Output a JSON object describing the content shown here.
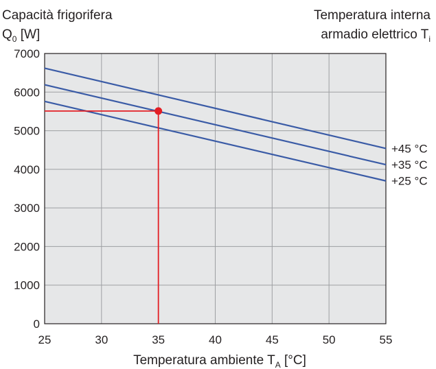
{
  "chart_data": {
    "type": "line",
    "title_left": {
      "line1": "Capacità frigorifera",
      "line2_main": "Q",
      "line2_sub": "0",
      "line2_rest": " [W]"
    },
    "title_right": {
      "line1": "Temperatura interna",
      "line2_main": "armadio elettrico T",
      "line2_sub": "i"
    },
    "xlabel": {
      "main": "Temperatura ambiente T",
      "sub": "A",
      "rest": " [°C]"
    },
    "x_ticks": [
      "25",
      "30",
      "35",
      "40",
      "45",
      "50",
      "55"
    ],
    "y_ticks": [
      "0",
      "1000",
      "2000",
      "3000",
      "4000",
      "5000",
      "6000",
      "7000"
    ],
    "xlim": [
      25,
      55
    ],
    "ylim": [
      0,
      7000
    ],
    "grid": true,
    "background_color": "#e6e7e8",
    "grid_color": "#9d9fa2",
    "series_color": "#3a5ba6",
    "marker_color": "#e31e24",
    "series": [
      {
        "name": "+45 °C",
        "label": "+45 °C",
        "x": [
          25,
          55
        ],
        "values": [
          6620,
          4540
        ]
      },
      {
        "name": "+35 °C",
        "label": "+35 °C",
        "x": [
          25,
          55
        ],
        "values": [
          6190,
          4120
        ]
      },
      {
        "name": "+25 °C",
        "label": "+25 °C",
        "x": [
          25,
          55
        ],
        "values": [
          5760,
          3700
        ]
      }
    ],
    "marker": {
      "x": 35,
      "y": 5510,
      "x_line_start": 25,
      "y_line_start": 0
    }
  }
}
